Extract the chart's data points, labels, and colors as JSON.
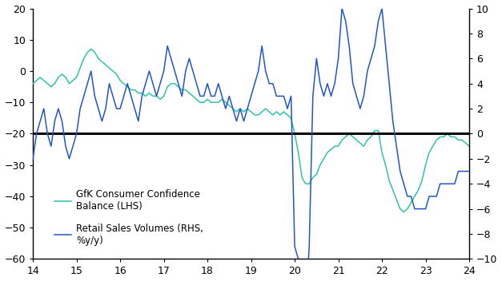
{
  "lhs_label": "GfK Consumer Confidence\nBalance (LHS)",
  "rhs_label": "Retail Sales Volumes (RHS,\n%y/y)",
  "x_min": 14,
  "x_max": 24,
  "lhs_ylim": [
    -60,
    20
  ],
  "rhs_ylim": [
    -10,
    10
  ],
  "lhs_yticks": [
    -60,
    -50,
    -40,
    -30,
    -20,
    -10,
    0,
    10,
    20
  ],
  "rhs_yticks": [
    -10,
    -8,
    -6,
    -4,
    -2,
    0,
    2,
    4,
    6,
    8,
    10
  ],
  "xticks": [
    14,
    15,
    16,
    17,
    18,
    19,
    20,
    21,
    22,
    23,
    24
  ],
  "hline_lhs": -20,
  "color_gfk": "#2EC4A5",
  "color_retail": "#2255CC",
  "gfk_x": [
    14.0,
    14.083,
    14.167,
    14.25,
    14.333,
    14.417,
    14.5,
    14.583,
    14.667,
    14.75,
    14.833,
    14.917,
    15.0,
    15.083,
    15.167,
    15.25,
    15.333,
    15.417,
    15.5,
    15.583,
    15.667,
    15.75,
    15.833,
    15.917,
    16.0,
    16.083,
    16.167,
    16.25,
    16.333,
    16.417,
    16.5,
    16.583,
    16.667,
    16.75,
    16.833,
    16.917,
    17.0,
    17.083,
    17.167,
    17.25,
    17.333,
    17.417,
    17.5,
    17.583,
    17.667,
    17.75,
    17.833,
    17.917,
    18.0,
    18.083,
    18.167,
    18.25,
    18.333,
    18.417,
    18.5,
    18.583,
    18.667,
    18.75,
    18.833,
    18.917,
    19.0,
    19.083,
    19.167,
    19.25,
    19.333,
    19.417,
    19.5,
    19.583,
    19.667,
    19.75,
    19.833,
    19.917,
    20.0,
    20.083,
    20.167,
    20.25,
    20.333,
    20.417,
    20.5,
    20.583,
    20.667,
    20.75,
    20.833,
    20.917,
    21.0,
    21.083,
    21.167,
    21.25,
    21.333,
    21.417,
    21.5,
    21.583,
    21.667,
    21.75,
    21.833,
    21.917,
    22.0,
    22.083,
    22.167,
    22.25,
    22.333,
    22.417,
    22.5,
    22.583,
    22.667,
    22.75,
    22.833,
    22.917,
    23.0,
    23.083,
    23.167,
    23.25,
    23.333,
    23.417,
    23.5,
    23.583,
    23.667,
    23.75,
    23.833,
    23.917,
    24.0
  ],
  "gfk_y": [
    -4,
    -3,
    -2,
    -3,
    -4,
    -5,
    -4,
    -2,
    -1,
    -2,
    -4,
    -3,
    -2,
    1,
    4,
    6,
    7,
    6,
    4,
    3,
    2,
    1,
    0,
    -1,
    -3,
    -4,
    -5,
    -6,
    -6,
    -7,
    -7,
    -8,
    -7,
    -8,
    -8,
    -9,
    -8,
    -5,
    -4,
    -4,
    -5,
    -6,
    -6,
    -7,
    -8,
    -9,
    -10,
    -10,
    -9,
    -10,
    -10,
    -10,
    -9,
    -10,
    -11,
    -12,
    -13,
    -12,
    -13,
    -12,
    -13,
    -14,
    -14,
    -13,
    -12,
    -13,
    -14,
    -13,
    -14,
    -13,
    -14,
    -15,
    -20,
    -26,
    -34,
    -36,
    -36,
    -34,
    -33,
    -30,
    -28,
    -26,
    -25,
    -24,
    -24,
    -22,
    -21,
    -20,
    -21,
    -22,
    -23,
    -24,
    -22,
    -21,
    -19,
    -19,
    -26,
    -30,
    -35,
    -38,
    -41,
    -44,
    -45,
    -44,
    -42,
    -40,
    -38,
    -35,
    -30,
    -26,
    -24,
    -22,
    -21,
    -21,
    -20,
    -21,
    -21,
    -22,
    -22,
    -23,
    -24
  ],
  "retail_x": [
    14.0,
    14.083,
    14.167,
    14.25,
    14.333,
    14.417,
    14.5,
    14.583,
    14.667,
    14.75,
    14.833,
    14.917,
    15.0,
    15.083,
    15.167,
    15.25,
    15.333,
    15.417,
    15.5,
    15.583,
    15.667,
    15.75,
    15.833,
    15.917,
    16.0,
    16.083,
    16.167,
    16.25,
    16.333,
    16.417,
    16.5,
    16.583,
    16.667,
    16.75,
    16.833,
    16.917,
    17.0,
    17.083,
    17.167,
    17.25,
    17.333,
    17.417,
    17.5,
    17.583,
    17.667,
    17.75,
    17.833,
    17.917,
    18.0,
    18.083,
    18.167,
    18.25,
    18.333,
    18.417,
    18.5,
    18.583,
    18.667,
    18.75,
    18.833,
    18.917,
    19.0,
    19.083,
    19.167,
    19.25,
    19.333,
    19.417,
    19.5,
    19.583,
    19.667,
    19.75,
    19.833,
    19.917,
    20.0,
    20.083,
    20.167,
    20.25,
    20.333,
    20.417,
    20.5,
    20.583,
    20.667,
    20.75,
    20.833,
    20.917,
    21.0,
    21.083,
    21.167,
    21.25,
    21.333,
    21.417,
    21.5,
    21.583,
    21.667,
    21.75,
    21.833,
    21.917,
    22.0,
    22.083,
    22.167,
    22.25,
    22.333,
    22.417,
    22.5,
    22.583,
    22.667,
    22.75,
    22.833,
    22.917,
    23.0,
    23.083,
    23.167,
    23.25,
    23.333,
    23.417,
    23.5,
    23.583,
    23.667,
    23.75,
    23.833,
    23.917,
    24.0
  ],
  "retail_y": [
    -2,
    0,
    1,
    2,
    0,
    -1,
    1,
    2,
    1,
    -1,
    -2,
    -1,
    0,
    2,
    3,
    4,
    5,
    3,
    2,
    1,
    2,
    4,
    3,
    2,
    2,
    3,
    4,
    3,
    2,
    1,
    3,
    4,
    5,
    4,
    3,
    4,
    5,
    7,
    6,
    5,
    4,
    3,
    5,
    6,
    5,
    4,
    3,
    3,
    4,
    3,
    3,
    4,
    3,
    2,
    3,
    2,
    1,
    2,
    1,
    2,
    3,
    4,
    5,
    7,
    5,
    4,
    4,
    3,
    3,
    3,
    2,
    3,
    -9,
    -10,
    -19,
    -14,
    -9,
    3,
    6,
    4,
    3,
    4,
    3,
    4,
    6,
    10,
    9,
    7,
    4,
    3,
    2,
    3,
    5,
    6,
    7,
    9,
    10,
    7,
    4,
    1,
    -1,
    -3,
    -4,
    -5,
    -5,
    -6,
    -6,
    -6,
    -6,
    -5,
    -5,
    -5,
    -4,
    -4,
    -4,
    -4,
    -4,
    -3,
    -3,
    -3,
    -3
  ]
}
